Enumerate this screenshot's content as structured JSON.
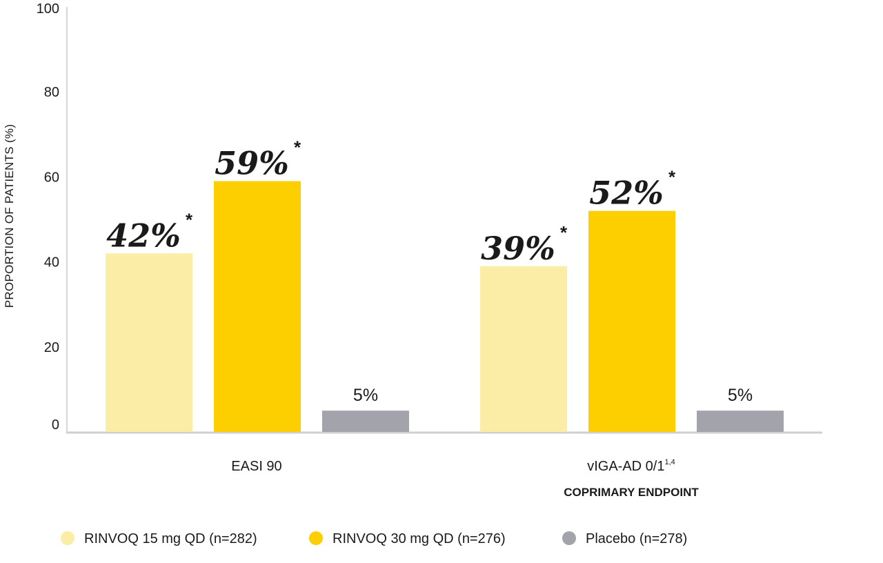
{
  "chart_data": {
    "type": "bar",
    "ylabel": "PROPORTION OF PATIENTS (%)",
    "ylim": [
      0,
      100
    ],
    "yticks": [
      0,
      20,
      40,
      60,
      80,
      100
    ],
    "categories": [
      "EASI 90",
      "vIGA-AD 0/1"
    ],
    "category_superscripts": [
      "",
      "1,4"
    ],
    "category_sublabels": [
      "",
      "COPRIMARY ENDPOINT"
    ],
    "series": [
      {
        "name": "RINVOQ 15 mg QD (n=282)",
        "color": "#fbeca6",
        "values": [
          42,
          39
        ],
        "labels": [
          "42%",
          "39%"
        ],
        "marker": "*"
      },
      {
        "name": "RINVOQ 30 mg QD (n=276)",
        "color": "#fecf00",
        "values": [
          59,
          52
        ],
        "labels": [
          "59%",
          "52%"
        ],
        "marker": "*"
      },
      {
        "name": "Placebo (n=278)",
        "color": "#a2a3ab",
        "values": [
          5,
          5
        ],
        "labels": [
          "5%",
          "5%"
        ],
        "marker": ""
      }
    ],
    "legend_position": "bottom",
    "grid": false
  }
}
